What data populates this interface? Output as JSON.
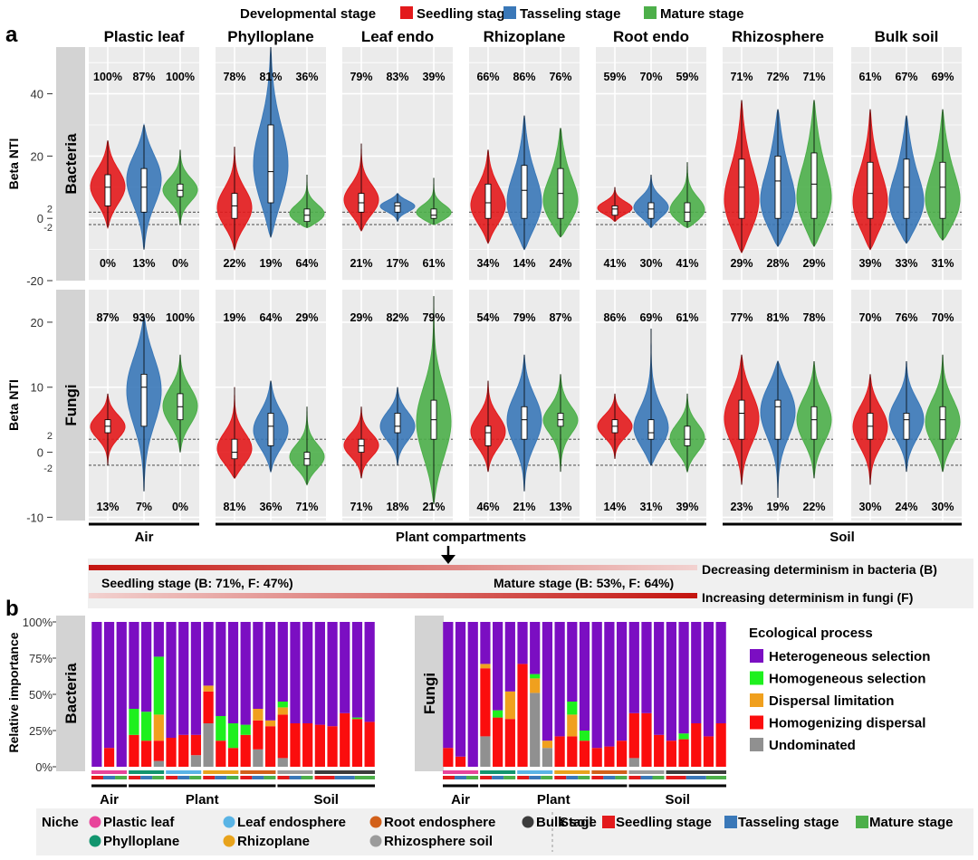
{
  "legend_top": {
    "title": "Developmental stage",
    "items": [
      {
        "label": "Seedling stage",
        "color": "#e31a1c"
      },
      {
        "label": "Tasseling stage",
        "color": "#3a78b8"
      },
      {
        "label": "Mature stage",
        "color": "#4daf4a"
      }
    ]
  },
  "panel_a": {
    "label": "a",
    "ylabel": "Beta NTI",
    "facets": [
      "Plastic leaf",
      "Phylloplane",
      "Leaf endo",
      "Rhizoplane",
      "Root endo",
      "Rhizosphere",
      "Bulk soil"
    ],
    "groups": [
      {
        "label": "Air",
        "from": 0,
        "to": 0
      },
      {
        "label": "Plant compartments",
        "from": 1,
        "to": 4
      },
      {
        "label": "Soil",
        "from": 5,
        "to": 6
      }
    ],
    "rows": [
      {
        "strip": "Bacteria",
        "ylim": [
          -20,
          55
        ],
        "ticks": [
          "40",
          "20",
          "0",
          "-20"
        ],
        "tick_values": [
          40,
          20,
          0,
          -20
        ],
        "ref_labels": [
          "2",
          "-2"
        ],
        "top_pct": [
          [
            "100%",
            "87%",
            "100%"
          ],
          [
            "78%",
            "81%",
            "36%"
          ],
          [
            "79%",
            "83%",
            "39%"
          ],
          [
            "66%",
            "86%",
            "76%"
          ],
          [
            "59%",
            "70%",
            "59%"
          ],
          [
            "71%",
            "72%",
            "71%"
          ],
          [
            "61%",
            "67%",
            "69%"
          ]
        ],
        "bottom_pct": [
          [
            "0%",
            "13%",
            "0%"
          ],
          [
            "22%",
            "19%",
            "64%"
          ],
          [
            "21%",
            "17%",
            "61%"
          ],
          [
            "34%",
            "14%",
            "24%"
          ],
          [
            "41%",
            "30%",
            "41%"
          ],
          [
            "29%",
            "28%",
            "29%"
          ],
          [
            "39%",
            "33%",
            "31%"
          ]
        ]
      },
      {
        "strip": "Fungi",
        "ylim": [
          -10.5,
          25
        ],
        "ticks": [
          "20",
          "10",
          "0",
          "-10"
        ],
        "tick_values": [
          20,
          10,
          0,
          -10
        ],
        "ref_labels": [
          "2",
          "-2"
        ],
        "top_pct": [
          [
            "87%",
            "93%",
            "100%"
          ],
          [
            "19%",
            "64%",
            "29%"
          ],
          [
            "29%",
            "82%",
            "79%"
          ],
          [
            "54%",
            "79%",
            "87%"
          ],
          [
            "86%",
            "69%",
            "61%"
          ],
          [
            "77%",
            "81%",
            "78%"
          ],
          [
            "70%",
            "76%",
            "70%"
          ]
        ],
        "bottom_pct": [
          [
            "13%",
            "7%",
            "0%"
          ],
          [
            "81%",
            "36%",
            "71%"
          ],
          [
            "71%",
            "18%",
            "21%"
          ],
          [
            "46%",
            "21%",
            "13%"
          ],
          [
            "14%",
            "31%",
            "39%"
          ],
          [
            "23%",
            "19%",
            "22%"
          ],
          [
            "30%",
            "24%",
            "30%"
          ]
        ]
      }
    ]
  },
  "trend": {
    "seedling": "Seedling stage (B: 71%, F: 47%)",
    "mature": "Mature stage (B: 53%, F: 64%)",
    "bacteria": "Decreasing determinism in bacteria (B)",
    "fungi": "Increasing determinism in fungi (F)"
  },
  "panel_b": {
    "label": "b",
    "ylabel": "Relative importance",
    "ticks": [
      "100%",
      "75%",
      "50%",
      "25%",
      "0%"
    ],
    "groups": [
      "Air",
      "Plant",
      "Soil"
    ],
    "legend_title": "Ecological process",
    "processes": [
      {
        "label": "Heterogeneous selection",
        "color": "#7b0ec2"
      },
      {
        "label": "Homogeneous selection",
        "color": "#1ef01e"
      },
      {
        "label": "Dispersal limitation",
        "color": "#f0a01e"
      },
      {
        "label": "Homogenizing dispersal",
        "color": "#fb0d0d"
      },
      {
        "label": "Undominated",
        "color": "#909090"
      }
    ],
    "niche_colors": [
      "#e8449a",
      "#12956e",
      "#5ab4e5",
      "#e8a31c",
      "#d2601a",
      "#9b9b9b",
      "#3c3c3c"
    ],
    "panels": [
      {
        "strip": "Bacteria",
        "bars": [
          [
            0,
            0,
            0,
            0,
            100
          ],
          [
            0,
            0,
            0,
            13,
            87
          ],
          [
            0,
            0,
            0,
            0,
            100
          ],
          [
            0,
            18,
            0,
            22,
            60
          ],
          [
            0,
            20,
            0,
            18,
            62
          ],
          [
            4,
            40,
            18,
            14,
            24
          ],
          [
            0,
            0,
            0,
            20,
            80
          ],
          [
            0,
            0,
            0,
            22,
            78
          ],
          [
            8,
            0,
            0,
            14,
            78
          ],
          [
            30,
            0,
            4,
            22,
            44
          ],
          [
            0,
            17,
            0,
            18,
            65
          ],
          [
            0,
            17,
            0,
            13,
            70
          ],
          [
            0,
            7,
            0,
            22,
            71
          ],
          [
            12,
            0,
            8,
            20,
            60
          ],
          [
            0,
            0,
            4,
            28,
            68
          ],
          [
            6,
            4,
            5,
            30,
            55
          ],
          [
            0,
            0,
            0,
            30,
            70
          ],
          [
            0,
            0,
            0,
            30,
            70
          ],
          [
            0,
            0,
            0,
            29,
            71
          ],
          [
            0,
            0,
            0,
            28,
            72
          ],
          [
            0,
            0,
            0,
            37,
            63
          ],
          [
            0,
            1,
            0,
            33,
            66
          ],
          [
            0,
            0,
            0,
            31,
            69
          ]
        ]
      },
      {
        "strip": "Fungi",
        "bars": [
          [
            0,
            0,
            0,
            13,
            87
          ],
          [
            0,
            0,
            0,
            7,
            93
          ],
          [
            0,
            0,
            0,
            0,
            100
          ],
          [
            21,
            0,
            3,
            47,
            29
          ],
          [
            0,
            5,
            0,
            34,
            61
          ],
          [
            0,
            0,
            19,
            33,
            48
          ],
          [
            0,
            0,
            0,
            71,
            29
          ],
          [
            51,
            3,
            10,
            0,
            36
          ],
          [
            13,
            0,
            5,
            0,
            82
          ],
          [
            0,
            0,
            0,
            21,
            79
          ],
          [
            0,
            9,
            15,
            21,
            55
          ],
          [
            0,
            7,
            0,
            18,
            75
          ],
          [
            0,
            0,
            0,
            13,
            87
          ],
          [
            0,
            0,
            0,
            14,
            86
          ],
          [
            0,
            0,
            0,
            18,
            82
          ],
          [
            6,
            0,
            0,
            31,
            63
          ],
          [
            0,
            0,
            0,
            37,
            63
          ],
          [
            0,
            0,
            0,
            22,
            78
          ],
          [
            0,
            0,
            0,
            18,
            82
          ],
          [
            0,
            4,
            0,
            19,
            77
          ],
          [
            0,
            0,
            0,
            30,
            70
          ],
          [
            0,
            0,
            0,
            21,
            79
          ],
          [
            0,
            0,
            0,
            30,
            70
          ]
        ]
      }
    ]
  },
  "legend_bottom": {
    "niche_title": "Niche",
    "niches": [
      {
        "label": "Plastic leaf",
        "color": "#e8449a"
      },
      {
        "label": "Leaf endosphere",
        "color": "#5ab4e5"
      },
      {
        "label": "Root endosphere",
        "color": "#d2601a"
      },
      {
        "label": "Bulk soil",
        "color": "#3c3c3c"
      },
      {
        "label": "Phylloplane",
        "color": "#12956e"
      },
      {
        "label": "Rhizoplane",
        "color": "#e8a31c"
      },
      {
        "label": "Rhizosphere soil",
        "color": "#9b9b9b"
      }
    ],
    "stage_title": "Stage",
    "stages": [
      {
        "label": "Seedling stage",
        "color": "#e31a1c"
      },
      {
        "label": "Tasseling stage",
        "color": "#3a78b8"
      },
      {
        "label": "Mature stage",
        "color": "#4daf4a"
      }
    ]
  },
  "chart_data": [
    {
      "type": "violin",
      "ylabel": "Beta NTI",
      "categories": [
        "Plastic leaf",
        "Phylloplane",
        "Leaf endo",
        "Rhizoplane",
        "Root endo",
        "Rhizosphere",
        "Bulk soil"
      ],
      "series_names": [
        "Seedling stage",
        "Tasseling stage",
        "Mature stage"
      ],
      "rows": [
        {
          "strip": "Bacteria",
          "ylim": [
            -20,
            55
          ],
          "hlines": [
            2,
            -2
          ],
          "violins": [
            [
              {
                "min": -3,
                "max": 25,
                "q1": 4,
                "med": 10,
                "q3": 14,
                "mode": 10
              },
              {
                "min": -10,
                "max": 30,
                "q1": 2,
                "med": 10,
                "q3": 16,
                "mode": 14
              },
              {
                "min": -2,
                "max": 22,
                "q1": 7,
                "med": 9,
                "q3": 11,
                "mode": 9
              }
            ],
            [
              {
                "min": -10,
                "max": 23,
                "q1": 0,
                "med": 4,
                "q3": 8,
                "mode": 2
              },
              {
                "min": -6,
                "max": 55,
                "q1": 5,
                "med": 15,
                "q3": 30,
                "mode": 15
              },
              {
                "min": -3,
                "max": 14,
                "q1": -1,
                "med": 1,
                "q3": 3,
                "mode": 0
              }
            ],
            [
              {
                "min": -4,
                "max": 24,
                "q1": 2,
                "med": 5,
                "q3": 8,
                "mode": 5
              },
              {
                "min": -1,
                "max": 8,
                "q1": 2,
                "med": 4,
                "q3": 5,
                "mode": 4
              },
              {
                "min": -2,
                "max": 13,
                "q1": 0,
                "med": 1,
                "q3": 3,
                "mode": 1
              }
            ],
            [
              {
                "min": -8,
                "max": 22,
                "q1": 0,
                "med": 5,
                "q3": 11,
                "mode": 3
              },
              {
                "min": -10,
                "max": 33,
                "q1": 0,
                "med": 9,
                "q3": 17,
                "mode": 2
              },
              {
                "min": -6,
                "max": 29,
                "q1": 0,
                "med": 8,
                "q3": 16,
                "mode": 3
              }
            ],
            [
              {
                "min": -1,
                "max": 10,
                "q1": 1,
                "med": 3,
                "q3": 4,
                "mode": 3
              },
              {
                "min": -3,
                "max": 14,
                "q1": 0,
                "med": 3,
                "q3": 5,
                "mode": 3
              },
              {
                "min": -3,
                "max": 18,
                "q1": -1,
                "med": 2,
                "q3": 5,
                "mode": 1
              }
            ],
            [
              {
                "min": -11,
                "max": 38,
                "q1": 0,
                "med": 10,
                "q3": 19,
                "mode": 2
              },
              {
                "min": -9,
                "max": 35,
                "q1": 0,
                "med": 12,
                "q3": 20,
                "mode": 2
              },
              {
                "min": -9,
                "max": 38,
                "q1": 0,
                "med": 11,
                "q3": 21,
                "mode": 3
              }
            ],
            [
              {
                "min": -10,
                "max": 35,
                "q1": 0,
                "med": 8,
                "q3": 18,
                "mode": 2
              },
              {
                "min": -8,
                "max": 33,
                "q1": 0,
                "med": 10,
                "q3": 19,
                "mode": 2
              },
              {
                "min": -7,
                "max": 35,
                "q1": 0,
                "med": 10,
                "q3": 18,
                "mode": 2
              }
            ]
          ]
        },
        {
          "strip": "Fungi",
          "ylim": [
            -10.5,
            25
          ],
          "hlines": [
            2,
            -2
          ],
          "violins": [
            [
              {
                "min": -2,
                "max": 9,
                "q1": 3,
                "med": 4,
                "q3": 5,
                "mode": 4
              },
              {
                "min": -6,
                "max": 21,
                "q1": 4,
                "med": 10,
                "q3": 12,
                "mode": 10
              },
              {
                "min": 0,
                "max": 15,
                "q1": 5,
                "med": 7,
                "q3": 9,
                "mode": 7
              }
            ],
            [
              {
                "min": -4,
                "max": 10,
                "q1": -1,
                "med": 0,
                "q3": 2,
                "mode": 0
              },
              {
                "min": -3,
                "max": 11,
                "q1": 1,
                "med": 4,
                "q3": 6,
                "mode": 3
              },
              {
                "min": -5,
                "max": 7,
                "q1": -2,
                "med": -1,
                "q3": 0,
                "mode": -1
              }
            ],
            [
              {
                "min": -4,
                "max": 7,
                "q1": 0,
                "med": 1,
                "q3": 2,
                "mode": 1
              },
              {
                "min": -2,
                "max": 10,
                "q1": 3,
                "med": 4,
                "q3": 6,
                "mode": 4
              },
              {
                "min": -8,
                "max": 24,
                "q1": 2,
                "med": 5,
                "q3": 8,
                "mode": 3
              }
            ],
            [
              {
                "min": -3,
                "max": 11,
                "q1": 1,
                "med": 3,
                "q3": 4,
                "mode": 3
              },
              {
                "min": -6,
                "max": 15,
                "q1": 2,
                "med": 5,
                "q3": 7,
                "mode": 5
              },
              {
                "min": -3,
                "max": 12,
                "q1": 4,
                "med": 5,
                "q3": 6,
                "mode": 5
              }
            ],
            [
              {
                "min": -1,
                "max": 9,
                "q1": 3,
                "med": 4,
                "q3": 5,
                "mode": 4
              },
              {
                "min": -2,
                "max": 19,
                "q1": 2,
                "med": 3,
                "q3": 5,
                "mode": 3
              },
              {
                "min": -3,
                "max": 9,
                "q1": 1,
                "med": 2,
                "q3": 4,
                "mode": 2
              }
            ],
            [
              {
                "min": -5,
                "max": 15,
                "q1": 2,
                "med": 6,
                "q3": 8,
                "mode": 5
              },
              {
                "min": -7,
                "max": 14,
                "q1": 2,
                "med": 7,
                "q3": 8,
                "mode": 7
              },
              {
                "min": -4,
                "max": 14,
                "q1": 2,
                "med": 5,
                "q3": 7,
                "mode": 5
              }
            ],
            [
              {
                "min": -5,
                "max": 12,
                "q1": 2,
                "med": 4,
                "q3": 6,
                "mode": 4
              },
              {
                "min": -3,
                "max": 14,
                "q1": 2,
                "med": 5,
                "q3": 6,
                "mode": 5
              },
              {
                "min": -3,
                "max": 15,
                "q1": 2,
                "med": 5,
                "q3": 7,
                "mode": 4
              }
            ]
          ]
        }
      ]
    }
  ]
}
